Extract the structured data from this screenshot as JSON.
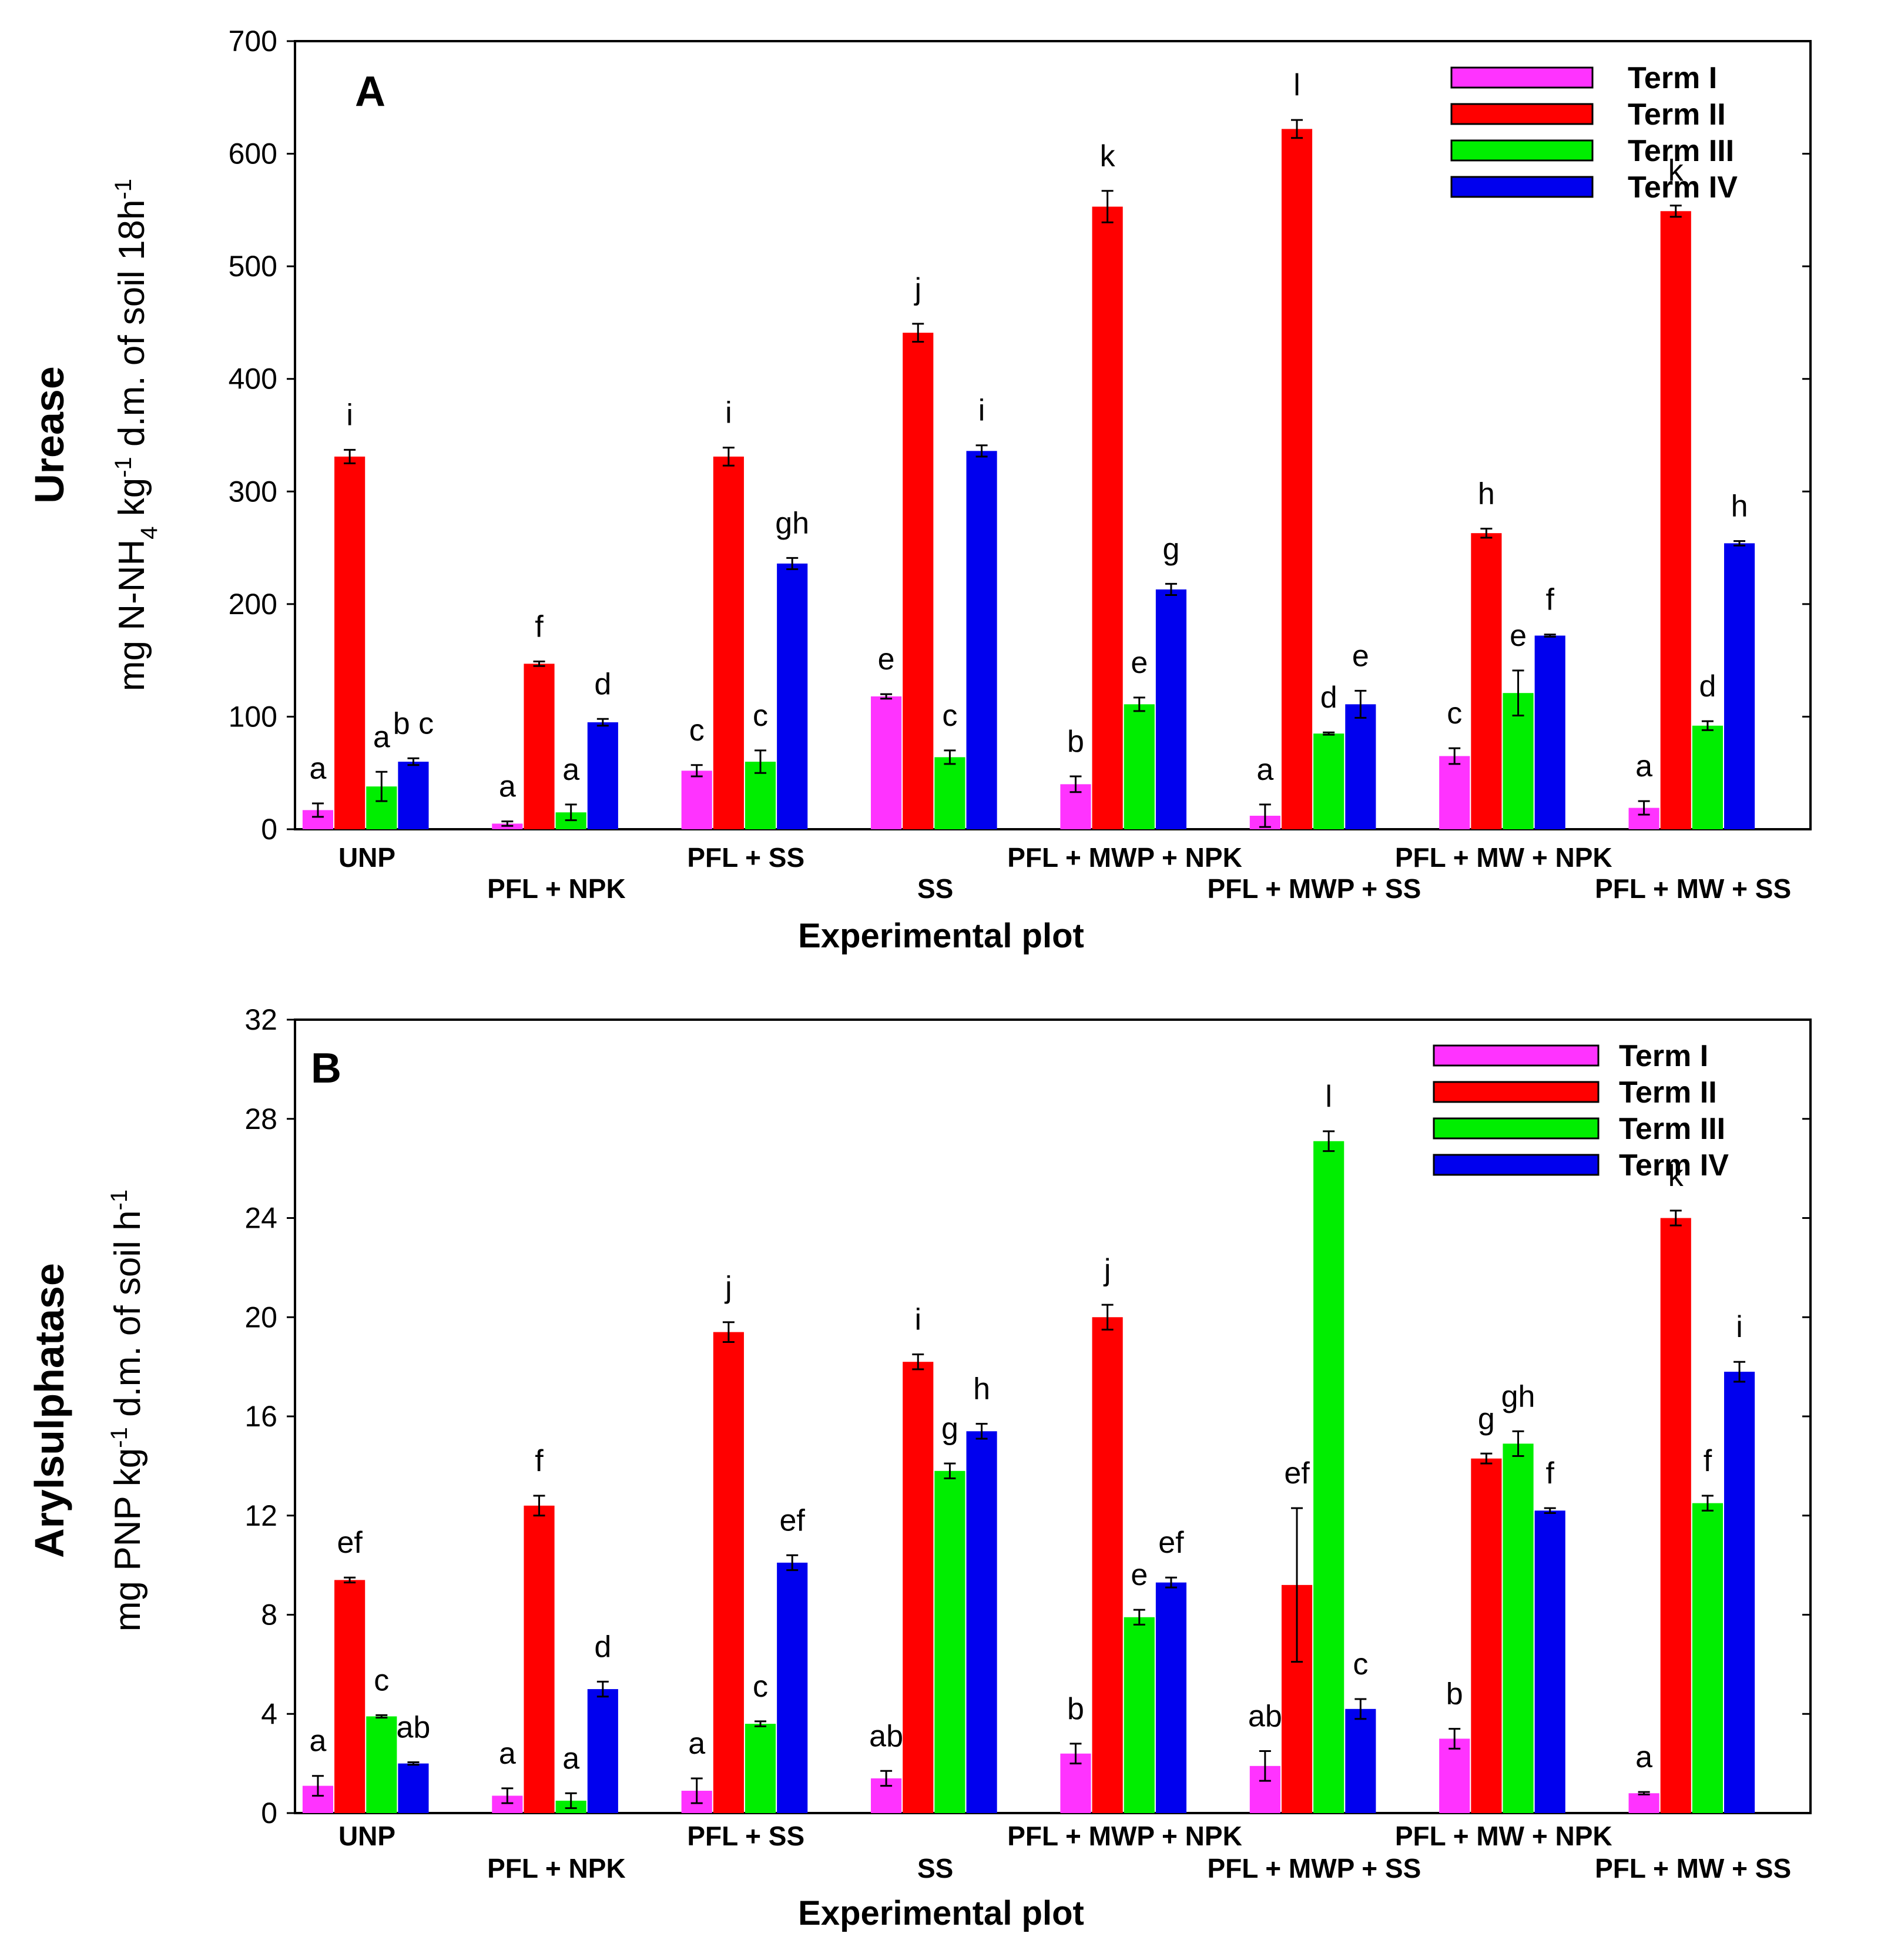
{
  "colors": {
    "Term I": "#ff33ff",
    "Term II": "#ff0000",
    "Term III": "#00ee00",
    "Term IV": "#0000ee"
  },
  "chart_data": [
    {
      "type": "bar",
      "panel": "A",
      "title": "",
      "xlabel": "Experimental plot",
      "ylabel_main": "Urease",
      "ylabel_sub": "mg N-NH4 kg-1 d.m. of soil 18h-1",
      "ylabel_parts": {
        "a": "mg N-NH",
        "b": "4",
        "c": " kg",
        "d": "-1",
        "e": " d.m. of soil 18h",
        "f": "-1"
      },
      "ylim": [
        0,
        700
      ],
      "yticks": [
        0,
        100,
        200,
        300,
        400,
        500,
        600,
        700
      ],
      "legend_position": "top-right",
      "categories": [
        "UNP",
        "PFL + NPK",
        "PFL + SS",
        "SS",
        "PFL + MWP + NPK",
        "PFL + MWP + SS",
        "PFL + MW + NPK",
        "PFL + MW + SS"
      ],
      "series": [
        {
          "name": "Term I",
          "values": [
            17,
            5,
            52,
            118,
            40,
            12,
            65,
            19
          ],
          "errors": [
            6,
            2,
            5,
            2,
            7,
            10,
            7,
            6
          ],
          "labels": [
            "a",
            "a",
            "c",
            "e",
            "b",
            "a",
            "c",
            "a"
          ]
        },
        {
          "name": "Term II",
          "values": [
            331,
            147,
            331,
            441,
            553,
            622,
            263,
            549
          ],
          "errors": [
            6,
            2,
            8,
            8,
            14,
            8,
            4,
            5
          ],
          "labels": [
            "i",
            "f",
            "i",
            "j",
            "k",
            "l",
            "h",
            "k"
          ]
        },
        {
          "name": "Term III",
          "values": [
            38,
            15,
            60,
            64,
            111,
            85,
            121,
            92
          ],
          "errors": [
            13,
            7,
            10,
            6,
            6,
            1,
            20,
            4
          ],
          "labels": [
            "a",
            "a",
            "c",
            "c",
            "e",
            "d",
            "e",
            "d"
          ]
        },
        {
          "name": "Term IV",
          "values": [
            60,
            95,
            236,
            336,
            213,
            111,
            172,
            254
          ],
          "errors": [
            3,
            3,
            5,
            5,
            5,
            12,
            1,
            2
          ],
          "labels": [
            "b c",
            "d",
            "gh",
            "i",
            "g",
            "e",
            "f",
            "h"
          ]
        }
      ]
    },
    {
      "type": "bar",
      "panel": "B",
      "title": "",
      "xlabel": "Experimental plot",
      "ylabel_main": "Arylsulphatase",
      "ylabel_sub": "mg PNP kg-1 d.m. of soil h-1",
      "ylabel_parts": {
        "a": "mg PNP kg",
        "b": "-1",
        "c": " d.m. of soil h",
        "d": "-1"
      },
      "ylim": [
        0,
        32
      ],
      "yticks": [
        0,
        4,
        8,
        12,
        16,
        20,
        24,
        28,
        32
      ],
      "legend_position": "top-right",
      "categories": [
        "UNP",
        "PFL + NPK",
        "PFL + SS",
        "SS",
        "PFL + MWP + NPK",
        "PFL + MWP + SS",
        "PFL + MW + NPK",
        "PFL + MW + SS"
      ],
      "series": [
        {
          "name": "Term I",
          "values": [
            1.1,
            0.7,
            0.9,
            1.4,
            2.4,
            1.9,
            3.0,
            0.8
          ],
          "errors": [
            0.4,
            0.3,
            0.5,
            0.3,
            0.4,
            0.6,
            0.4,
            0.05
          ],
          "labels": [
            "a",
            "a",
            "a",
            "ab",
            "b",
            "ab",
            "b",
            "a"
          ]
        },
        {
          "name": "Term II",
          "values": [
            9.4,
            12.4,
            19.4,
            18.2,
            20.0,
            9.2,
            14.3,
            24.0
          ],
          "errors": [
            0.1,
            0.4,
            0.4,
            0.3,
            0.5,
            3.1,
            0.2,
            0.3
          ],
          "labels": [
            "ef",
            "f",
            "j",
            "i",
            "j",
            "ef",
            "g",
            "k"
          ]
        },
        {
          "name": "Term III",
          "values": [
            3.9,
            0.5,
            3.6,
            13.8,
            7.9,
            27.1,
            14.9,
            12.5
          ],
          "errors": [
            0.05,
            0.3,
            0.1,
            0.3,
            0.3,
            0.4,
            0.5,
            0.3
          ],
          "labels": [
            "c",
            "a",
            "c",
            "g",
            "e",
            "l",
            "gh",
            "f"
          ]
        },
        {
          "name": "Term IV",
          "values": [
            2.0,
            5.0,
            10.1,
            15.4,
            9.3,
            4.2,
            12.2,
            17.8
          ],
          "errors": [
            0.05,
            0.3,
            0.3,
            0.3,
            0.2,
            0.4,
            0.1,
            0.4
          ],
          "labels": [
            "ab",
            "d",
            "ef",
            "h",
            "ef",
            "c",
            "f",
            "i"
          ]
        }
      ]
    }
  ]
}
